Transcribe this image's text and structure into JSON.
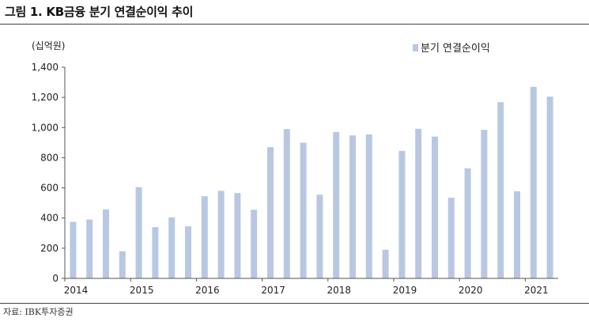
{
  "figure": {
    "title": "그림 1. KB금융 분기 연결순이익 추이",
    "source": "자료: IBK투자증권"
  },
  "chart_data": {
    "type": "bar",
    "unit_label": "(십억원)",
    "x": [
      "1Q14",
      "2Q14",
      "3Q14",
      "4Q14",
      "1Q15",
      "2Q15",
      "3Q15",
      "4Q15",
      "1Q16",
      "2Q16",
      "3Q16",
      "4Q16",
      "1Q17",
      "2Q17",
      "3Q17",
      "4Q17",
      "1Q18",
      "2Q18",
      "3Q18",
      "4Q18",
      "1Q19",
      "2Q19",
      "3Q19",
      "4Q19",
      "1Q20",
      "2Q20",
      "3Q20",
      "4Q20",
      "1Q21",
      "2Q21"
    ],
    "year_labels": [
      "2014",
      "2015",
      "2016",
      "2017",
      "2018",
      "2019",
      "2020",
      "2021"
    ],
    "series": [
      {
        "name": "분기 연결순이익",
        "color": "#b8c8e2",
        "values": [
          375,
          390,
          458,
          180,
          605,
          340,
          405,
          345,
          545,
          580,
          565,
          455,
          870,
          990,
          900,
          555,
          970,
          948,
          955,
          190,
          845,
          992,
          940,
          535,
          730,
          985,
          1168,
          578,
          1270,
          1205
        ]
      }
    ],
    "ylim": [
      0,
      1400
    ],
    "yticks": [
      "0",
      "200",
      "400",
      "600",
      "800",
      "1,000",
      "1,200",
      "1,400"
    ],
    "grid": false,
    "legend_position": "top-right"
  }
}
